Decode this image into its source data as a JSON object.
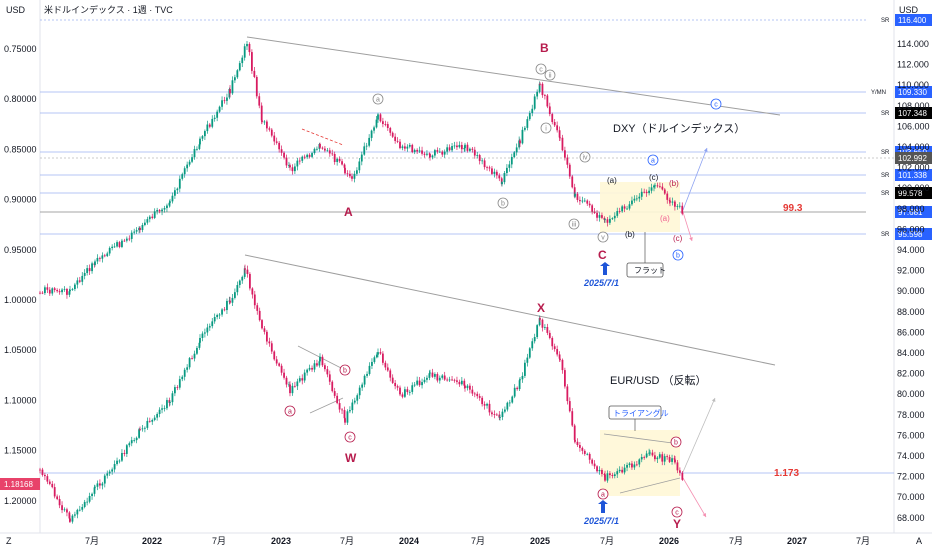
{
  "header": {
    "title": "米ドルインデックス · 1週 · TVC",
    "left_unit": "USD",
    "right_unit": "USD"
  },
  "axis_corner": {
    "left": "Z",
    "right": "A"
  },
  "chart_data": {
    "type": "candlestick",
    "left_axis_ticks": [
      "0.75000",
      "0.80000",
      "0.85000",
      "0.90000",
      "0.95000",
      "1.00000",
      "1.05000",
      "1.10000",
      "1.15000",
      "1.20000"
    ],
    "right_axis_ticks": [
      "114.000",
      "112.000",
      "110.000",
      "108.000",
      "106.000",
      "104.000",
      "102.000",
      "100.000",
      "98.000",
      "96.000",
      "94.000",
      "92.000",
      "90.000",
      "88.000",
      "86.000",
      "84.000",
      "82.000",
      "80.000",
      "78.000",
      "76.000",
      "74.000",
      "72.000",
      "70.000",
      "68.000"
    ],
    "x_ticks": [
      "7月",
      "2022",
      "7月",
      "2023",
      "7月",
      "2024",
      "7月",
      "2025",
      "7月",
      "2026",
      "7月",
      "2027",
      "7月"
    ],
    "panels": [
      {
        "name": "DXY（ドルインデックス）",
        "wave_labels": [
          "A",
          "B",
          "C",
          "ⓐ",
          "ⓑ",
          "ⓒ",
          "ⓘ",
          "ⓘ",
          "ⓘⓘ",
          "ⓘⓥ",
          "ⓥ",
          "(a)",
          "(b)",
          "(c)",
          "(a)",
          "(b)",
          "(c)",
          "ⓐ",
          "ⓑ",
          "ⓒ"
        ],
        "callouts": [
          "フラット",
          "2025/7/1"
        ],
        "target": "99.3"
      },
      {
        "name": "EUR/USD （反転）",
        "wave_labels": [
          "W",
          "X",
          "Y",
          "ⓐ",
          "ⓑ",
          "ⓒ",
          "ⓐ",
          "ⓑ",
          "ⓒ"
        ],
        "callouts": [
          "トライアングル",
          "2025/7/1"
        ],
        "target": "1.173"
      }
    ],
    "price_tags": [
      {
        "label": "116.400",
        "color": "#2962ff",
        "kind": "SR"
      },
      {
        "label": "109.330",
        "color": "#2962ff",
        "kind": "Y/MN"
      },
      {
        "label": "107.348",
        "color": "#000000",
        "kind": "SR"
      },
      {
        "label": "103.650",
        "color": "#2962ff",
        "kind": "SR"
      },
      {
        "label": "102.992",
        "color": "#555555",
        "kind": ""
      },
      {
        "label": "101.338",
        "color": "#2962ff",
        "kind": "SR"
      },
      {
        "label": "99.578",
        "color": "#000000",
        "kind": "SR"
      },
      {
        "label": "97.681",
        "color": "#2962ff",
        "kind": ""
      },
      {
        "label": "95.598",
        "color": "#2962ff",
        "kind": "SR"
      }
    ],
    "left_tag": {
      "label": "1.18168",
      "color": "#e8426a"
    },
    "grid": true
  },
  "colors": {
    "up": "#089981",
    "down": "#d81b60",
    "wave_red": "#b71c4d",
    "wave_blue": "#2962ff",
    "target_red": "#e53935",
    "sr_line": "#2962ff",
    "box_fill": "#fff7d6"
  }
}
